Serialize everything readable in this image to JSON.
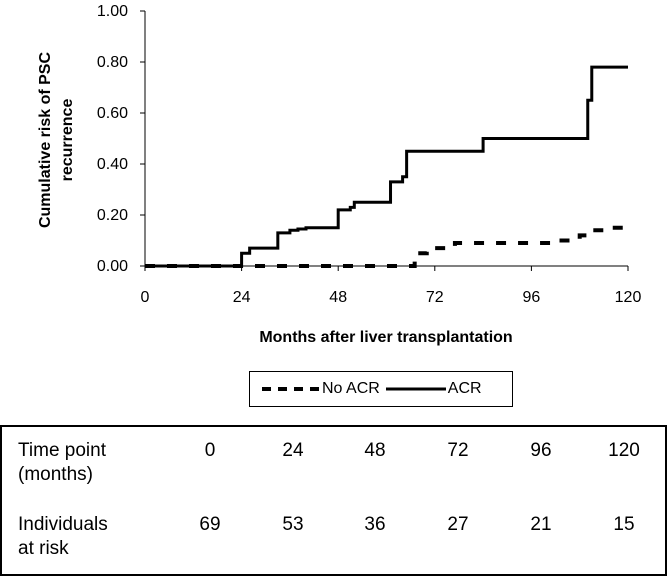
{
  "chart_data": {
    "type": "line",
    "title": "",
    "xlabel": "Months after liver transplantation",
    "ylabel": "Cumulative risk of PSC recurrence",
    "xlim": [
      0,
      120
    ],
    "ylim": [
      0,
      1
    ],
    "xticks": [
      "0",
      "24",
      "48",
      "72",
      "96",
      "120"
    ],
    "yticks": [
      "0.00",
      "0.20",
      "0.40",
      "0.60",
      "0.80",
      "1.00"
    ],
    "grid": false,
    "step": true,
    "legend_position": "bottom",
    "series": [
      {
        "name": "No ACR",
        "style": "dashed",
        "x": [
          0,
          66,
          67,
          70,
          75,
          77,
          100,
          102,
          108,
          110,
          115,
          120
        ],
        "y": [
          0.0,
          0.0,
          0.05,
          0.07,
          0.075,
          0.09,
          0.09,
          0.1,
          0.12,
          0.14,
          0.15,
          0.15
        ]
      },
      {
        "name": "ACR",
        "style": "solid",
        "x": [
          0,
          23,
          24,
          26,
          33,
          36,
          38,
          40,
          48,
          51,
          52,
          57,
          61,
          64,
          65,
          83,
          84,
          108,
          110,
          111,
          120
        ],
        "y": [
          0.0,
          0.0,
          0.05,
          0.07,
          0.13,
          0.14,
          0.145,
          0.15,
          0.22,
          0.23,
          0.25,
          0.25,
          0.33,
          0.35,
          0.45,
          0.45,
          0.5,
          0.5,
          0.65,
          0.78,
          0.78
        ]
      }
    ]
  },
  "legend": {
    "no_acr": "No ACR",
    "acr": "ACR"
  },
  "risk_table": {
    "row1_label_line1": "Time point",
    "row1_label_line2": "(months)",
    "row1_values": [
      "0",
      "24",
      "48",
      "72",
      "96",
      "120"
    ],
    "row2_label_line1": "Individuals",
    "row2_label_line2": "at risk",
    "row2_values": [
      "69",
      "53",
      "36",
      "27",
      "21",
      "15"
    ]
  }
}
